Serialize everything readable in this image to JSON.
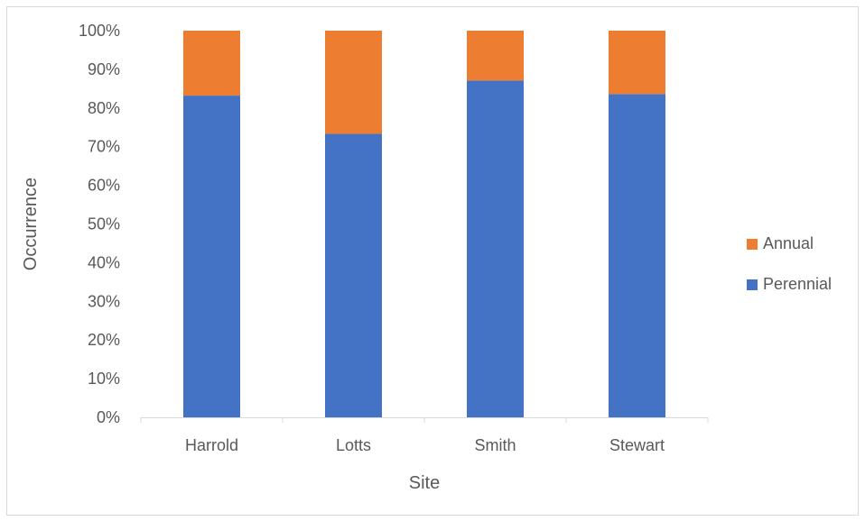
{
  "chart_data": {
    "type": "bar",
    "stacked": true,
    "percent": true,
    "categories": [
      "Harrold",
      "Lotts",
      "Smith",
      "Stewart"
    ],
    "series": [
      {
        "name": "Perennial",
        "color": "#4472c4",
        "values": [
          83.2,
          73.3,
          87.1,
          83.6
        ]
      },
      {
        "name": "Annual",
        "color": "#ed7d31",
        "values": [
          16.8,
          26.7,
          12.9,
          16.4
        ]
      }
    ],
    "xlabel": "Site",
    "ylabel": "Occurrence",
    "ylim": [
      0,
      100
    ],
    "yticks": [
      "0%",
      "10%",
      "20%",
      "30%",
      "40%",
      "50%",
      "60%",
      "70%",
      "80%",
      "90%",
      "100%"
    ],
    "grid": false,
    "legend": {
      "position": "right",
      "order": [
        "Annual",
        "Perennial"
      ]
    }
  }
}
